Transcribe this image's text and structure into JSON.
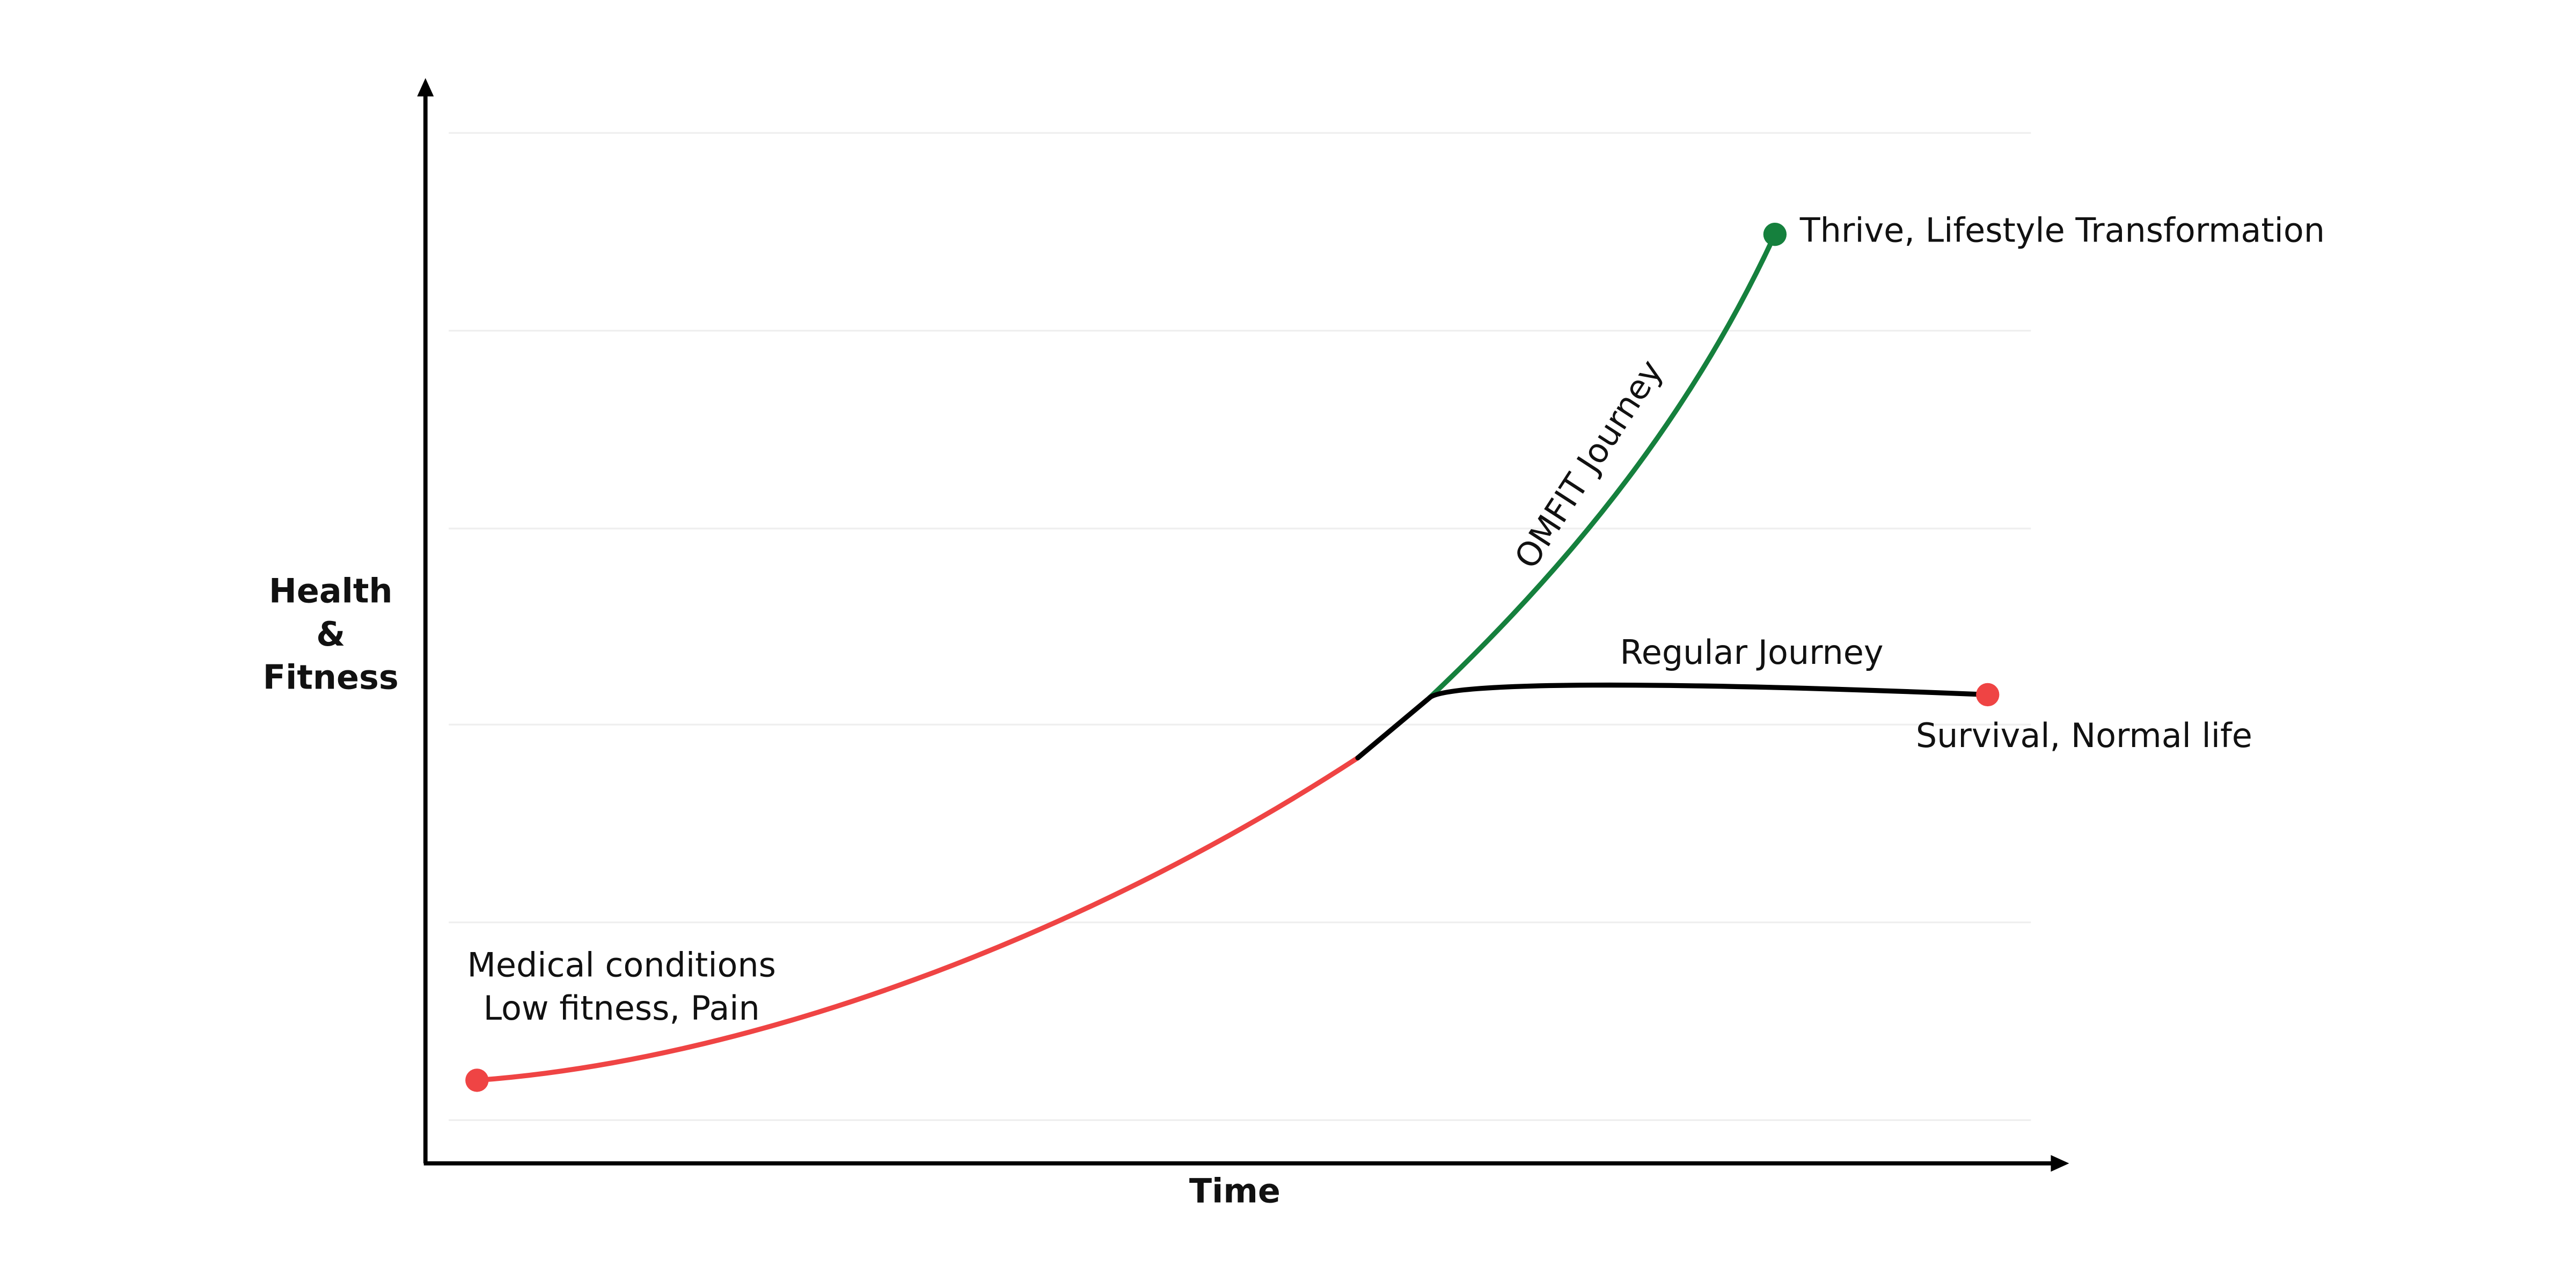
{
  "diagram": {
    "y_axis_label": [
      "Health",
      "&",
      "Fitness"
    ],
    "x_axis_label": "Time",
    "start_label": [
      "Medical conditions",
      "Low fitness, Pain"
    ],
    "omfit_path_label": "OMFIT Journey",
    "omfit_end_label": "Thrive, Lifestyle Transformation",
    "regular_path_label": "Regular Journey",
    "regular_end_label": "Survival, Normal life"
  }
}
